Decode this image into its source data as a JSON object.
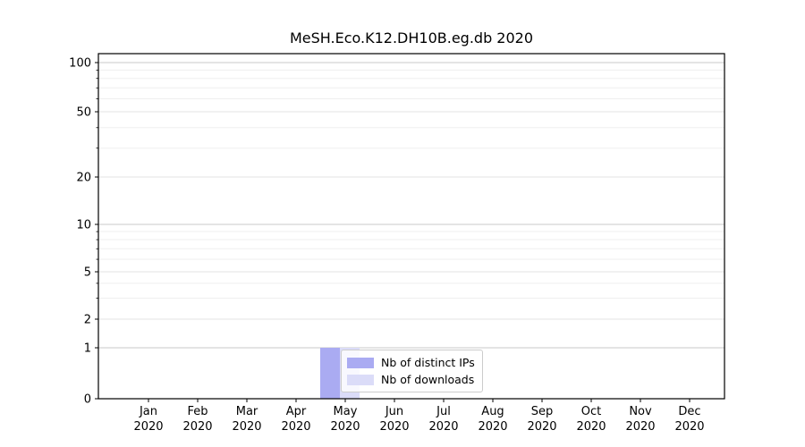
{
  "chart_data": {
    "type": "bar",
    "title": "MeSH.Eco.K12.DH10B.eg.db 2020",
    "x_year": "2020",
    "categories": [
      "Jan",
      "Feb",
      "Mar",
      "Apr",
      "May",
      "Jun",
      "Jul",
      "Aug",
      "Sep",
      "Oct",
      "Nov",
      "Dec"
    ],
    "series": [
      {
        "name": "Nb of distinct IPs",
        "color": "#aaabf2",
        "values": [
          0,
          0,
          0,
          0,
          1,
          0,
          0,
          0,
          0,
          0,
          0,
          0
        ]
      },
      {
        "name": "Nb of downloads",
        "color": "#dbdcf8",
        "values": [
          0,
          0,
          0,
          0,
          1,
          0,
          0,
          0,
          0,
          0,
          0,
          0
        ]
      }
    ],
    "yscale": "linear 0-1, logarithmic above 1",
    "ytick_labels": [
      0,
      1,
      2,
      5,
      10,
      20,
      50,
      100
    ],
    "ytick_minor": [
      3,
      4,
      6,
      7,
      8,
      9,
      30,
      40,
      60,
      70,
      80,
      90
    ],
    "ylim": [
      0,
      113
    ],
    "grid": true,
    "legend_position": "lower-center",
    "colors": {
      "frame": "#000000",
      "grid_decade": "#c8c8c8",
      "grid_labeled": "#e3e3e3",
      "grid_minor": "#efefef",
      "text": "#000000"
    }
  }
}
